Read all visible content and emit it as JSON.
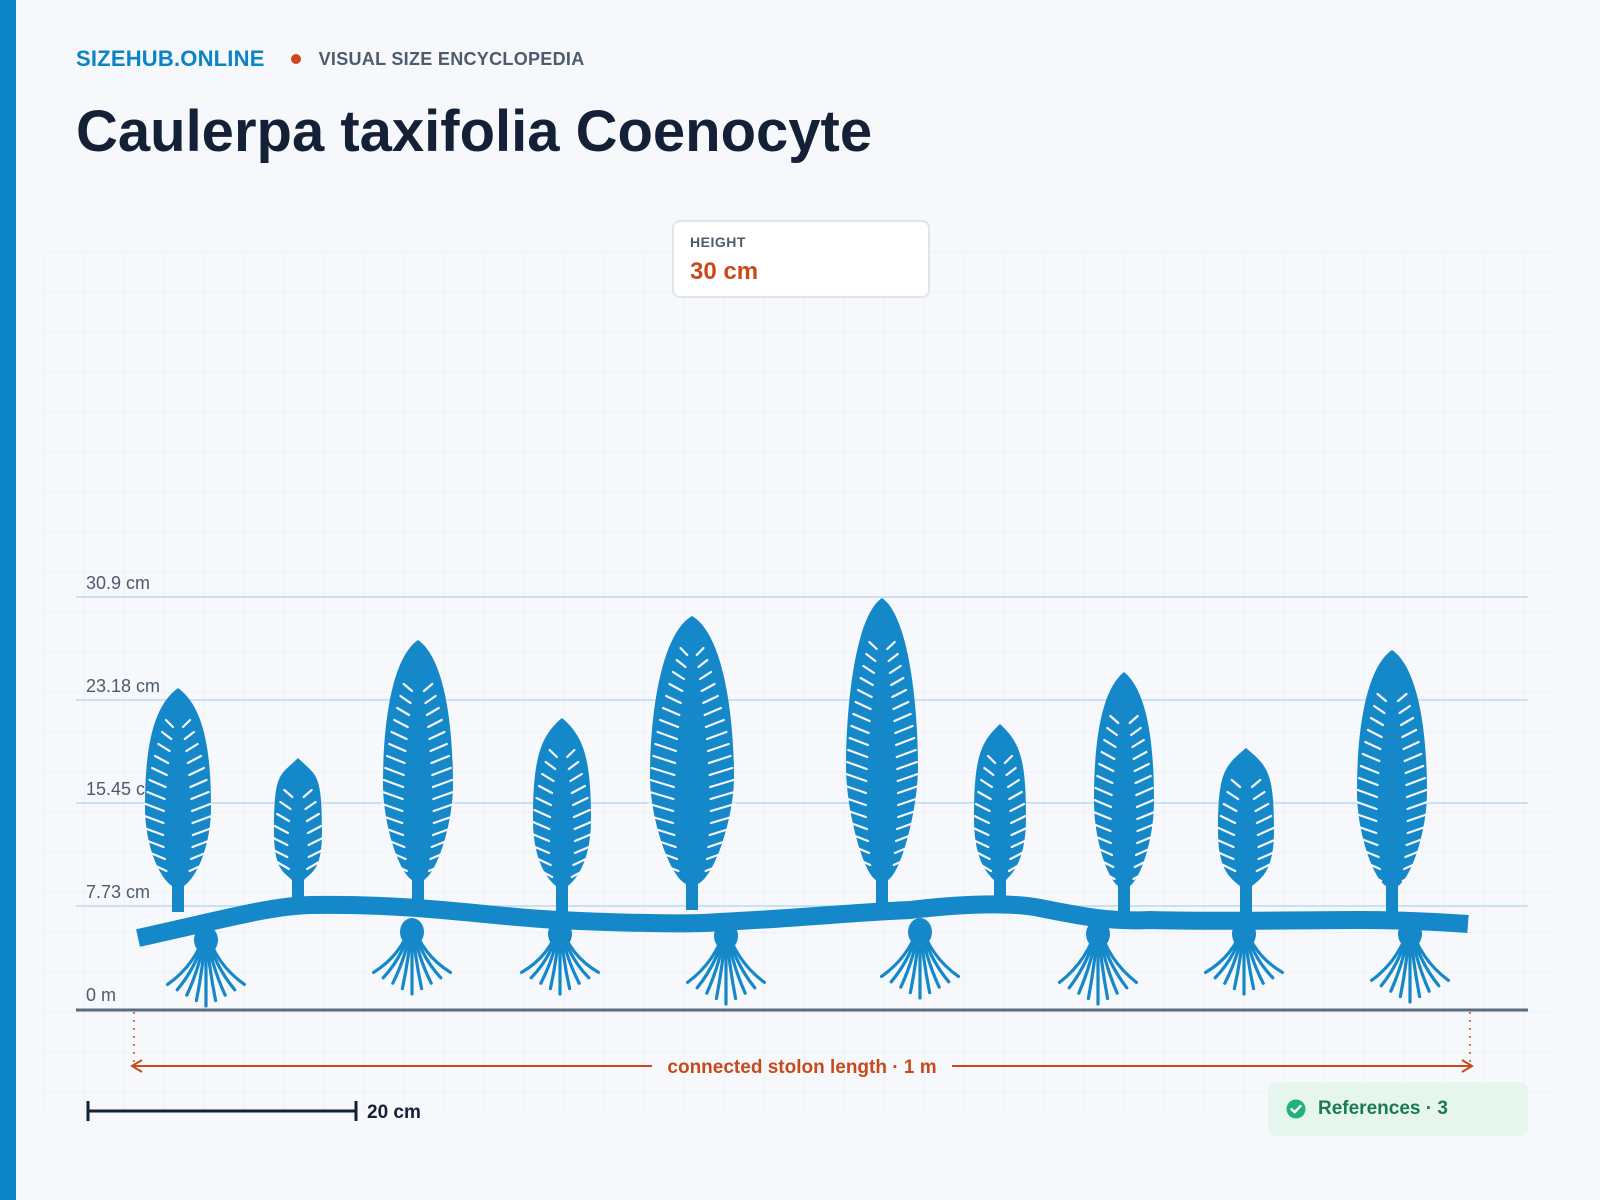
{
  "site": {
    "brand": "SIZEHUB.ONLINE",
    "tagline": "VISUAL SIZE ENCYCLOPEDIA"
  },
  "page_title": "Caulerpa taxifolia Coenocyte",
  "height_card": {
    "label": "HEIGHT",
    "value": "30 cm"
  },
  "colors": {
    "accent": "#0a84c6",
    "plant": "#1588c9",
    "highlight": "#c84a1c",
    "success": "#1b7a52"
  },
  "y_axis": {
    "labels": [
      "30.9 cm",
      "23.18 cm",
      "15.45 cm",
      "7.73 cm",
      "0 m"
    ]
  },
  "stolon_measure": {
    "label": "connected stolon length · 1 m"
  },
  "scale_bar": {
    "label": "20 cm"
  },
  "references": {
    "label": "References · 3",
    "icon": "check-circle-icon"
  }
}
